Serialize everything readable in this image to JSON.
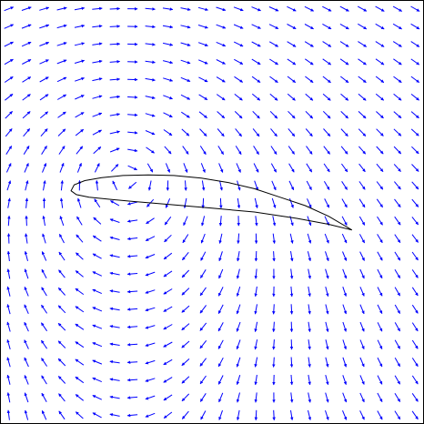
{
  "chart_data": {
    "type": "quiver",
    "title": "",
    "xlabel": "",
    "ylabel": "",
    "xlim": [
      -1.0,
      1.0
    ],
    "ylim": [
      -1.0,
      1.0
    ],
    "grid": false,
    "legend": "none",
    "colors": {
      "vectors": "#0000ff",
      "airfoil": "#000000",
      "frame": "#000000",
      "background": "#ffffff"
    },
    "vector_grid": {
      "columns": 24,
      "rows": 24,
      "x_start": -1.0,
      "x_end": 1.0,
      "y_start": 1.0,
      "y_end": -1.0
    },
    "vortex": {
      "center": [
        -0.4,
        0.16
      ],
      "circulation": 1.0,
      "core_radius": 0.08
    },
    "free_stream": [
      0.04,
      0.0
    ],
    "airfoil": {
      "leading_edge": [
        -0.665,
        0.1
      ],
      "trailing_edge": [
        0.66,
        -0.085
      ],
      "upper_surface": [
        [
          -0.665,
          0.1
        ],
        [
          -0.65,
          0.128
        ],
        [
          -0.6,
          0.148
        ],
        [
          -0.52,
          0.162
        ],
        [
          -0.42,
          0.172
        ],
        [
          -0.3,
          0.175
        ],
        [
          -0.18,
          0.172
        ],
        [
          -0.05,
          0.16
        ],
        [
          0.08,
          0.138
        ],
        [
          0.2,
          0.11
        ],
        [
          0.32,
          0.07
        ],
        [
          0.44,
          0.03
        ],
        [
          0.55,
          -0.02
        ],
        [
          0.66,
          -0.085
        ]
      ],
      "lower_surface": [
        [
          -0.665,
          0.1
        ],
        [
          -0.64,
          0.082
        ],
        [
          -0.58,
          0.07
        ],
        [
          -0.5,
          0.062
        ],
        [
          -0.38,
          0.05
        ],
        [
          -0.2,
          0.035
        ],
        [
          0.0,
          0.018
        ],
        [
          0.2,
          0.0
        ],
        [
          0.4,
          -0.03
        ],
        [
          0.55,
          -0.058
        ],
        [
          0.66,
          -0.085
        ]
      ]
    }
  }
}
